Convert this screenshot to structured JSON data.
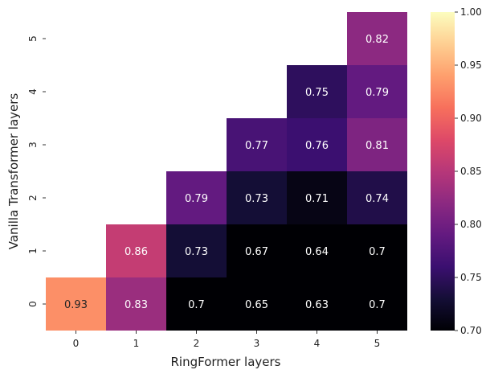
{
  "chart_data": {
    "type": "heatmap",
    "title": "",
    "xlabel": "RingFormer layers",
    "ylabel": "Vanilla Transformer layers",
    "x_categories": [
      "0",
      "1",
      "2",
      "3",
      "4",
      "5"
    ],
    "y_categories": [
      "0",
      "1",
      "2",
      "3",
      "4",
      "5"
    ],
    "cells": [
      {
        "x": "0",
        "y": "0",
        "value": 0.93
      },
      {
        "x": "1",
        "y": "0",
        "value": 0.83
      },
      {
        "x": "2",
        "y": "0",
        "value": 0.7
      },
      {
        "x": "3",
        "y": "0",
        "value": 0.65
      },
      {
        "x": "4",
        "y": "0",
        "value": 0.63
      },
      {
        "x": "5",
        "y": "0",
        "value": 0.7
      },
      {
        "x": "1",
        "y": "1",
        "value": 0.86
      },
      {
        "x": "2",
        "y": "1",
        "value": 0.73
      },
      {
        "x": "3",
        "y": "1",
        "value": 0.67
      },
      {
        "x": "4",
        "y": "1",
        "value": 0.64
      },
      {
        "x": "5",
        "y": "1",
        "value": 0.7
      },
      {
        "x": "2",
        "y": "2",
        "value": 0.79
      },
      {
        "x": "3",
        "y": "2",
        "value": 0.73
      },
      {
        "x": "4",
        "y": "2",
        "value": 0.71
      },
      {
        "x": "5",
        "y": "2",
        "value": 0.74
      },
      {
        "x": "3",
        "y": "3",
        "value": 0.77
      },
      {
        "x": "4",
        "y": "3",
        "value": 0.76
      },
      {
        "x": "5",
        "y": "3",
        "value": 0.81
      },
      {
        "x": "4",
        "y": "4",
        "value": 0.75
      },
      {
        "x": "5",
        "y": "4",
        "value": 0.79
      },
      {
        "x": "5",
        "y": "5",
        "value": 0.82
      }
    ],
    "colormap": "magma",
    "color_range": [
      0.7,
      1.0
    ],
    "colorbar_ticks": [
      "0.70",
      "0.75",
      "0.80",
      "0.85",
      "0.90",
      "0.95",
      "1.00"
    ],
    "grid": false,
    "legend": "colorbar-right"
  }
}
